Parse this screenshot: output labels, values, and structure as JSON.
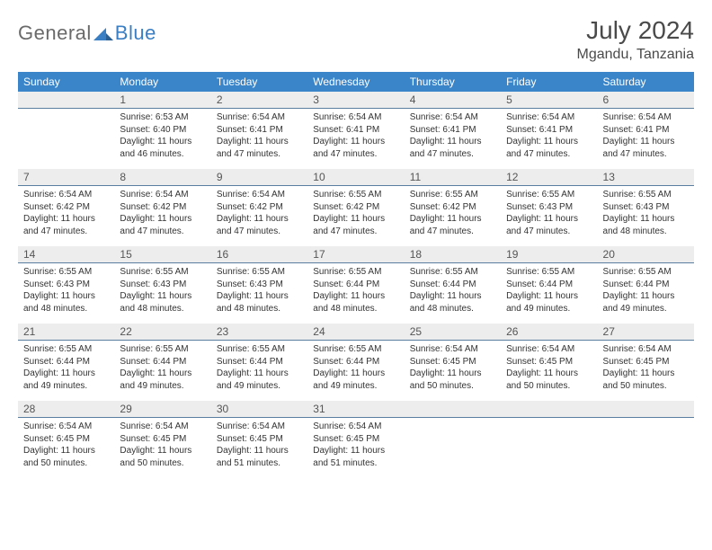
{
  "brand": {
    "part1": "General",
    "part2": "Blue"
  },
  "title": "July 2024",
  "location": "Mgandu, Tanzania",
  "colors": {
    "header_bg": "#3a85c9",
    "header_text": "#ffffff",
    "numrow_bg": "#ededed",
    "numrow_border": "#5a7ea0",
    "body_text": "#333333",
    "brand_gray": "#6a6a6a",
    "brand_blue": "#3a7fc4"
  },
  "dow": [
    "Sunday",
    "Monday",
    "Tuesday",
    "Wednesday",
    "Thursday",
    "Friday",
    "Saturday"
  ],
  "weeks": [
    {
      "nums": [
        "",
        "1",
        "2",
        "3",
        "4",
        "5",
        "6"
      ],
      "cells": [
        null,
        {
          "sunrise": "6:53 AM",
          "sunset": "6:40 PM",
          "daylight": "11 hours and 46 minutes."
        },
        {
          "sunrise": "6:54 AM",
          "sunset": "6:41 PM",
          "daylight": "11 hours and 47 minutes."
        },
        {
          "sunrise": "6:54 AM",
          "sunset": "6:41 PM",
          "daylight": "11 hours and 47 minutes."
        },
        {
          "sunrise": "6:54 AM",
          "sunset": "6:41 PM",
          "daylight": "11 hours and 47 minutes."
        },
        {
          "sunrise": "6:54 AM",
          "sunset": "6:41 PM",
          "daylight": "11 hours and 47 minutes."
        },
        {
          "sunrise": "6:54 AM",
          "sunset": "6:41 PM",
          "daylight": "11 hours and 47 minutes."
        }
      ]
    },
    {
      "nums": [
        "7",
        "8",
        "9",
        "10",
        "11",
        "12",
        "13"
      ],
      "cells": [
        {
          "sunrise": "6:54 AM",
          "sunset": "6:42 PM",
          "daylight": "11 hours and 47 minutes."
        },
        {
          "sunrise": "6:54 AM",
          "sunset": "6:42 PM",
          "daylight": "11 hours and 47 minutes."
        },
        {
          "sunrise": "6:54 AM",
          "sunset": "6:42 PM",
          "daylight": "11 hours and 47 minutes."
        },
        {
          "sunrise": "6:55 AM",
          "sunset": "6:42 PM",
          "daylight": "11 hours and 47 minutes."
        },
        {
          "sunrise": "6:55 AM",
          "sunset": "6:42 PM",
          "daylight": "11 hours and 47 minutes."
        },
        {
          "sunrise": "6:55 AM",
          "sunset": "6:43 PM",
          "daylight": "11 hours and 47 minutes."
        },
        {
          "sunrise": "6:55 AM",
          "sunset": "6:43 PM",
          "daylight": "11 hours and 48 minutes."
        }
      ]
    },
    {
      "nums": [
        "14",
        "15",
        "16",
        "17",
        "18",
        "19",
        "20"
      ],
      "cells": [
        {
          "sunrise": "6:55 AM",
          "sunset": "6:43 PM",
          "daylight": "11 hours and 48 minutes."
        },
        {
          "sunrise": "6:55 AM",
          "sunset": "6:43 PM",
          "daylight": "11 hours and 48 minutes."
        },
        {
          "sunrise": "6:55 AM",
          "sunset": "6:43 PM",
          "daylight": "11 hours and 48 minutes."
        },
        {
          "sunrise": "6:55 AM",
          "sunset": "6:44 PM",
          "daylight": "11 hours and 48 minutes."
        },
        {
          "sunrise": "6:55 AM",
          "sunset": "6:44 PM",
          "daylight": "11 hours and 48 minutes."
        },
        {
          "sunrise": "6:55 AM",
          "sunset": "6:44 PM",
          "daylight": "11 hours and 49 minutes."
        },
        {
          "sunrise": "6:55 AM",
          "sunset": "6:44 PM",
          "daylight": "11 hours and 49 minutes."
        }
      ]
    },
    {
      "nums": [
        "21",
        "22",
        "23",
        "24",
        "25",
        "26",
        "27"
      ],
      "cells": [
        {
          "sunrise": "6:55 AM",
          "sunset": "6:44 PM",
          "daylight": "11 hours and 49 minutes."
        },
        {
          "sunrise": "6:55 AM",
          "sunset": "6:44 PM",
          "daylight": "11 hours and 49 minutes."
        },
        {
          "sunrise": "6:55 AM",
          "sunset": "6:44 PM",
          "daylight": "11 hours and 49 minutes."
        },
        {
          "sunrise": "6:55 AM",
          "sunset": "6:44 PM",
          "daylight": "11 hours and 49 minutes."
        },
        {
          "sunrise": "6:54 AM",
          "sunset": "6:45 PM",
          "daylight": "11 hours and 50 minutes."
        },
        {
          "sunrise": "6:54 AM",
          "sunset": "6:45 PM",
          "daylight": "11 hours and 50 minutes."
        },
        {
          "sunrise": "6:54 AM",
          "sunset": "6:45 PM",
          "daylight": "11 hours and 50 minutes."
        }
      ]
    },
    {
      "nums": [
        "28",
        "29",
        "30",
        "31",
        "",
        "",
        ""
      ],
      "cells": [
        {
          "sunrise": "6:54 AM",
          "sunset": "6:45 PM",
          "daylight": "11 hours and 50 minutes."
        },
        {
          "sunrise": "6:54 AM",
          "sunset": "6:45 PM",
          "daylight": "11 hours and 50 minutes."
        },
        {
          "sunrise": "6:54 AM",
          "sunset": "6:45 PM",
          "daylight": "11 hours and 51 minutes."
        },
        {
          "sunrise": "6:54 AM",
          "sunset": "6:45 PM",
          "daylight": "11 hours and 51 minutes."
        },
        null,
        null,
        null
      ]
    }
  ],
  "labels": {
    "sunrise": "Sunrise: ",
    "sunset": "Sunset: ",
    "daylight": "Daylight: "
  }
}
